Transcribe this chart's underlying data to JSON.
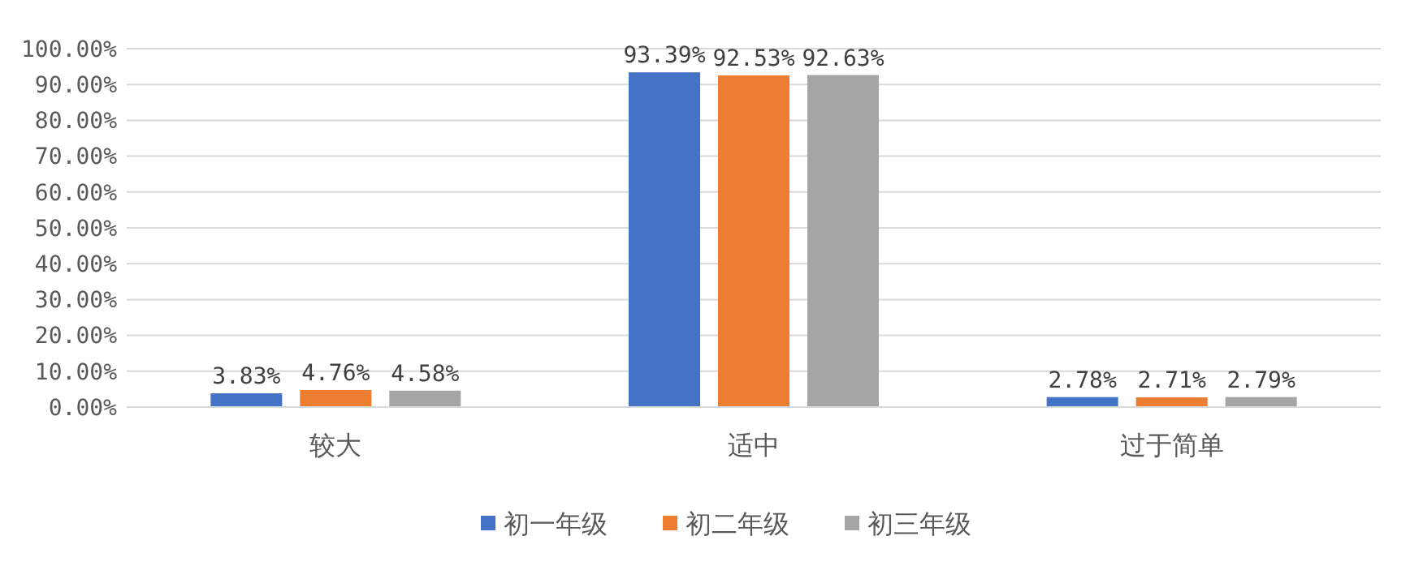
{
  "chart_data": {
    "type": "bar",
    "categories": [
      "较大",
      "适中",
      "过于简单"
    ],
    "series": [
      {
        "name": "初一年级",
        "color": "#4472c4",
        "values": [
          3.83,
          93.39,
          2.78
        ],
        "value_labels": [
          "3.83%",
          "93.39%",
          "2.78%"
        ]
      },
      {
        "name": "初二年级",
        "color": "#ed7d31",
        "values": [
          4.76,
          92.53,
          2.71
        ],
        "value_labels": [
          "4.76%",
          "92.53%",
          "2.71%"
        ]
      },
      {
        "name": "初三年级",
        "color": "#a5a5a5",
        "values": [
          4.58,
          92.63,
          2.79
        ],
        "value_labels": [
          "4.58%",
          "92.63%",
          "2.79%"
        ]
      }
    ],
    "ylim": [
      0,
      100
    ],
    "yticks": [
      {
        "value": 0,
        "label": "0.00%"
      },
      {
        "value": 10,
        "label": "10.00%"
      },
      {
        "value": 20,
        "label": "20.00%"
      },
      {
        "value": 30,
        "label": "30.00%"
      },
      {
        "value": 40,
        "label": "40.00%"
      },
      {
        "value": 50,
        "label": "50.00%"
      },
      {
        "value": 60,
        "label": "60.00%"
      },
      {
        "value": 70,
        "label": "70.00%"
      },
      {
        "value": 80,
        "label": "80.00%"
      },
      {
        "value": 90,
        "label": "90.00%"
      },
      {
        "value": 100,
        "label": "100.00%"
      }
    ],
    "grid": "y",
    "legend": "bottom"
  }
}
